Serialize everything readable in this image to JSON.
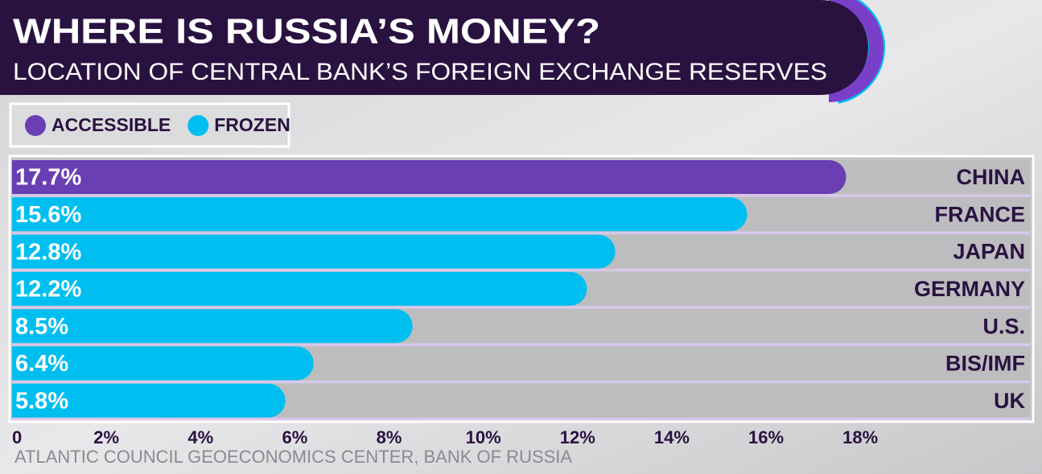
{
  "chart_data": {
    "type": "bar",
    "orientation": "horizontal",
    "title": "WHERE IS RUSSIA’S MONEY?",
    "subtitle": "LOCATION OF CENTRAL BANK’S FOREIGN EXCHANGE RESERVES",
    "source": "ATLANTIC COUNCIL GEOECONOMICS CENTER, BANK OF RUSSIA",
    "categories": [
      "CHINA",
      "FRANCE",
      "JAPAN",
      "GERMANY",
      "U.S.",
      "BIS/IMF",
      "UK"
    ],
    "series": [
      {
        "name": "ACCESSIBLE",
        "color": "#6a3fb3",
        "values": [
          17.7,
          null,
          null,
          null,
          null,
          null,
          null
        ],
        "value_labels": [
          "17.7%",
          null,
          null,
          null,
          null,
          null,
          null
        ]
      },
      {
        "name": "FROZEN",
        "color": "#00bff0",
        "values": [
          null,
          15.6,
          12.8,
          12.2,
          8.5,
          6.4,
          5.8
        ],
        "value_labels": [
          null,
          "15.6%",
          "12.8%",
          "12.2%",
          "8.5%",
          "6.4%",
          "5.8%"
        ]
      }
    ],
    "xlim": [
      0,
      21.6
    ],
    "xticks": [
      0,
      {
        "value": 2,
        "label": "2%"
      },
      {
        "value": 4,
        "label": "4%"
      },
      {
        "value": 6,
        "label": "6%"
      },
      {
        "value": 8,
        "label": "8%"
      },
      {
        "value": 10,
        "label": "10%"
      },
      {
        "value": 12,
        "label": "12%"
      },
      {
        "value": 14,
        "label": "14%"
      },
      {
        "value": 16,
        "label": "16%"
      },
      {
        "value": 18,
        "label": "18%"
      }
    ],
    "legend": "top-left"
  }
}
